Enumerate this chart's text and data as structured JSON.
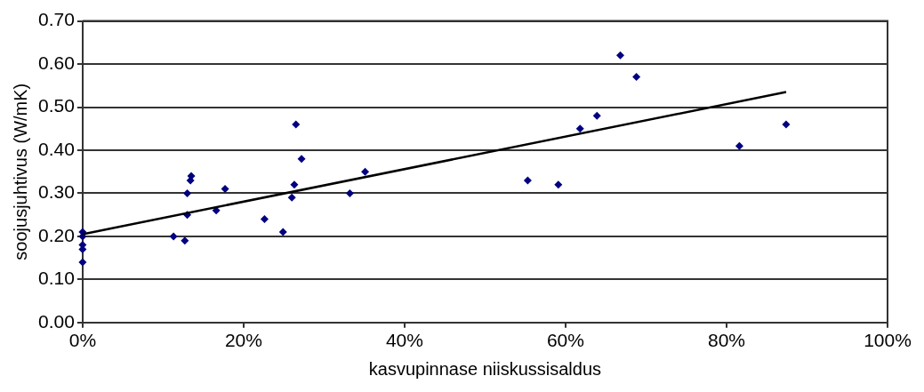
{
  "chart_data": {
    "type": "scatter",
    "xlabel": "kasvupinnase niiskussisaldus",
    "ylabel": "soojusjuhtivus (W/mK)",
    "xlim": [
      0,
      100
    ],
    "ylim": [
      0,
      0.7
    ],
    "xticks": [
      {
        "value": 0,
        "label": "0%"
      },
      {
        "value": 20,
        "label": "20%"
      },
      {
        "value": 40,
        "label": "40%"
      },
      {
        "value": 60,
        "label": "60%"
      },
      {
        "value": 80,
        "label": "80%"
      },
      {
        "value": 100,
        "label": "100%"
      }
    ],
    "yticks": [
      {
        "value": 0,
        "label": "0.00"
      },
      {
        "value": 0.1,
        "label": "0.10"
      },
      {
        "value": 0.2,
        "label": "0.20"
      },
      {
        "value": 0.3,
        "label": "0.30"
      },
      {
        "value": 0.4,
        "label": "0.40"
      },
      {
        "value": 0.5,
        "label": "0.50"
      },
      {
        "value": 0.6,
        "label": "0.60"
      },
      {
        "value": 0.7,
        "label": "0.70"
      }
    ],
    "grid": "y",
    "legend": false,
    "marker": "diamond",
    "series": [
      {
        "color": "#000080",
        "x": [
          0,
          0,
          0,
          0,
          0,
          11.3,
          12.7,
          13.0,
          13.0,
          13.4,
          13.5,
          16.6,
          17.7,
          22.6,
          24.9,
          26.0,
          26.3,
          26.5,
          27.2,
          33.2,
          35.1,
          55.3,
          59.1,
          61.8,
          63.9,
          66.8,
          68.8,
          81.6,
          87.4
        ],
        "values": [
          0.21,
          0.2,
          0.18,
          0.17,
          0.14,
          0.2,
          0.19,
          0.25,
          0.3,
          0.33,
          0.34,
          0.26,
          0.31,
          0.24,
          0.21,
          0.29,
          0.32,
          0.46,
          0.38,
          0.3,
          0.35,
          0.33,
          0.32,
          0.45,
          0.48,
          0.62,
          0.57,
          0.41,
          0.46
        ]
      },
      {
        "type": "line",
        "color": "#000000",
        "marker": "none",
        "x": [
          0,
          87.4
        ],
        "values": [
          0.205,
          0.535
        ]
      }
    ]
  }
}
